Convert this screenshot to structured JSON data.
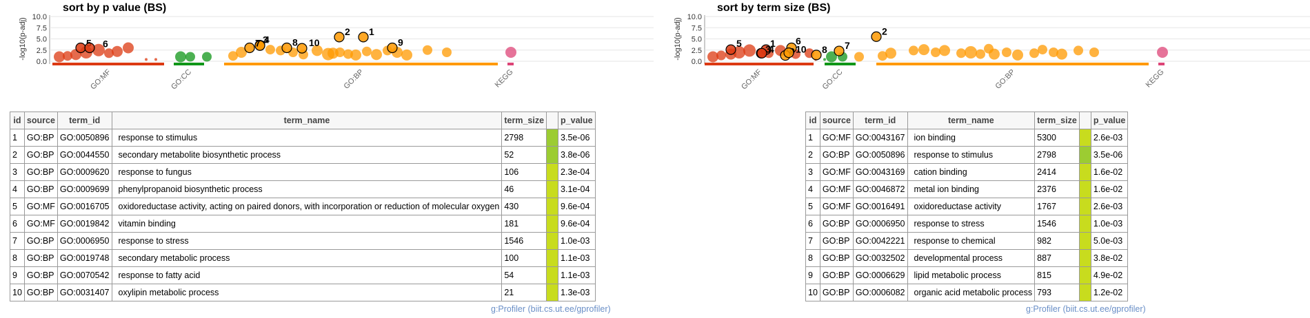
{
  "credit_text": "g:Profiler (biit.cs.ut.ee/gprofiler)",
  "colors": {
    "GO:MF": "#dc3912",
    "GO:CC": "#109618",
    "GO:BP": "#ff9900",
    "KEGG": "#dd4477",
    "pvalue_cell": "#c8dc1e",
    "pvalue_cell_alt": "#9ccc32"
  },
  "chart_data": [
    {
      "type": "scatter",
      "title": "sort by p value (BS)",
      "ylabel": "-log10(p-adj)",
      "ylim": [
        0,
        10
      ],
      "yticks": [
        "0.0",
        "2.5",
        "5.0",
        "7.5",
        "10.0"
      ],
      "sources": [
        "GO:MF",
        "GO:CC",
        "GO:BP",
        "KEGG"
      ],
      "labelled_points": [
        {
          "label": "1",
          "source": "GO:BP",
          "y": 5.4
        },
        {
          "label": "2",
          "source": "GO:BP",
          "y": 5.4
        },
        {
          "label": "3",
          "source": "GO:BP",
          "y": 3.6
        },
        {
          "label": "4",
          "source": "GO:BP",
          "y": 3.5
        },
        {
          "label": "5",
          "source": "GO:MF",
          "y": 3.0
        },
        {
          "label": "6",
          "source": "GO:MF",
          "y": 3.0
        },
        {
          "label": "7",
          "source": "GO:BP",
          "y": 3.0
        },
        {
          "label": "8",
          "source": "GO:BP",
          "y": 3.0
        },
        {
          "label": "9",
          "source": "GO:BP",
          "y": 3.0
        },
        {
          "label": "10",
          "source": "GO:BP",
          "y": 2.9
        }
      ],
      "table": {
        "headers": [
          "id",
          "source",
          "term_id",
          "term_name",
          "term_size",
          "",
          "p_value"
        ],
        "rows": [
          [
            "1",
            "GO:BP",
            "GO:0050896",
            "response to stimulus",
            "2798",
            "3.5e-06"
          ],
          [
            "2",
            "GO:BP",
            "GO:0044550",
            "secondary metabolite biosynthetic process",
            "52",
            "3.8e-06"
          ],
          [
            "3",
            "GO:BP",
            "GO:0009620",
            "response to fungus",
            "106",
            "2.3e-04"
          ],
          [
            "4",
            "GO:BP",
            "GO:0009699",
            "phenylpropanoid biosynthetic process",
            "46",
            "3.1e-04"
          ],
          [
            "5",
            "GO:MF",
            "GO:0016705",
            "oxidoreductase activity, acting on paired donors, with incorporation or reduction of molecular oxygen",
            "430",
            "9.6e-04"
          ],
          [
            "6",
            "GO:MF",
            "GO:0019842",
            "vitamin binding",
            "181",
            "9.6e-04"
          ],
          [
            "7",
            "GO:BP",
            "GO:0006950",
            "response to stress",
            "1546",
            "1.0e-03"
          ],
          [
            "8",
            "GO:BP",
            "GO:0019748",
            "secondary metabolic process",
            "100",
            "1.1e-03"
          ],
          [
            "9",
            "GO:BP",
            "GO:0070542",
            "response to fatty acid",
            "54",
            "1.1e-03"
          ],
          [
            "10",
            "GO:BP",
            "GO:0031407",
            "oxylipin metabolic process",
            "21",
            "1.3e-03"
          ]
        ]
      }
    },
    {
      "type": "scatter",
      "title": "sort by term size (BS)",
      "ylabel": "-log10(p-adj)",
      "ylim": [
        0,
        10
      ],
      "yticks": [
        "0.0",
        "2.5",
        "5.0",
        "7.5",
        "10.0"
      ],
      "sources": [
        "GO:MF",
        "GO:CC",
        "GO:BP",
        "KEGG"
      ],
      "labelled_points": [
        {
          "label": "1",
          "source": "GO:MF",
          "y": 2.6
        },
        {
          "label": "2",
          "source": "GO:BP",
          "y": 5.5
        },
        {
          "label": "3",
          "source": "GO:MF",
          "y": 1.8
        },
        {
          "label": "4",
          "source": "GO:MF",
          "y": 1.8
        },
        {
          "label": "5",
          "source": "GO:MF",
          "y": 2.6
        },
        {
          "label": "6",
          "source": "GO:BP",
          "y": 3.0
        },
        {
          "label": "7",
          "source": "GO:BP",
          "y": 2.3
        },
        {
          "label": "8",
          "source": "GO:BP",
          "y": 1.4
        },
        {
          "label": "9",
          "source": "GO:BP",
          "y": 1.3
        },
        {
          "label": "10",
          "source": "GO:BP",
          "y": 1.9
        }
      ],
      "table": {
        "headers": [
          "id",
          "source",
          "term_id",
          "term_name",
          "term_size",
          "",
          "p_value"
        ],
        "rows": [
          [
            "1",
            "GO:MF",
            "GO:0043167",
            "ion binding",
            "5300",
            "2.6e-03"
          ],
          [
            "2",
            "GO:BP",
            "GO:0050896",
            "response to stimulus",
            "2798",
            "3.5e-06"
          ],
          [
            "3",
            "GO:MF",
            "GO:0043169",
            "cation binding",
            "2414",
            "1.6e-02"
          ],
          [
            "4",
            "GO:MF",
            "GO:0046872",
            "metal ion binding",
            "2376",
            "1.6e-02"
          ],
          [
            "5",
            "GO:MF",
            "GO:0016491",
            "oxidoreductase activity",
            "1767",
            "2.6e-03"
          ],
          [
            "6",
            "GO:BP",
            "GO:0006950",
            "response to stress",
            "1546",
            "1.0e-03"
          ],
          [
            "7",
            "GO:BP",
            "GO:0042221",
            "response to chemical",
            "982",
            "5.0e-03"
          ],
          [
            "8",
            "GO:BP",
            "GO:0032502",
            "developmental process",
            "887",
            "3.8e-02"
          ],
          [
            "9",
            "GO:BP",
            "GO:0006629",
            "lipid metabolic process",
            "815",
            "4.9e-02"
          ],
          [
            "10",
            "GO:BP",
            "GO:0006082",
            "organic acid metabolic process",
            "793",
            "1.2e-02"
          ]
        ]
      }
    }
  ]
}
